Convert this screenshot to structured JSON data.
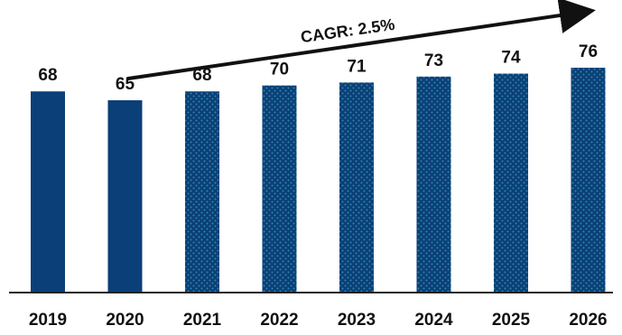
{
  "chart_data": {
    "type": "bar",
    "categories": [
      "2019",
      "2020",
      "2021",
      "2022",
      "2023",
      "2024",
      "2025",
      "2026"
    ],
    "values": [
      68,
      65,
      68,
      70,
      71,
      73,
      74,
      76
    ],
    "series_style": [
      "solid",
      "solid",
      "dotted",
      "dotted",
      "dotted",
      "dotted",
      "dotted",
      "dotted"
    ],
    "title": "",
    "xlabel": "",
    "ylabel": "",
    "ylim": [
      0,
      76
    ],
    "grid": false,
    "legend": "none",
    "annotations": [
      {
        "text": "CAGR: 2.5%",
        "type": "trend-arrow"
      }
    ]
  },
  "colors": {
    "bar": "#0b3f77",
    "dot": "#2f87a8",
    "axis": "#222222",
    "text": "#111111",
    "arrow": "#111111"
  }
}
